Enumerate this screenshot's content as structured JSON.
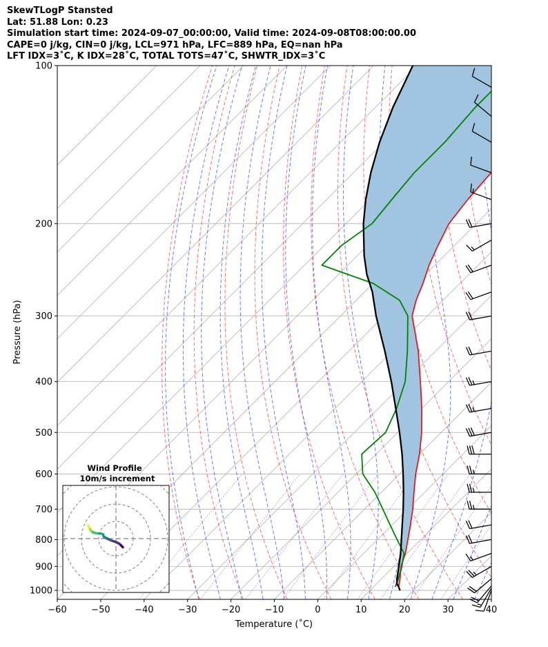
{
  "header": {
    "line1": "SkewTLogP Stansted",
    "line2": "Lat: 51.88   Lon: 0.23",
    "line3": "Simulation start time: 2024-09-07_00:00:00, Valid time: 2024-09-08T08:00:00.00",
    "line4": "CAPE=0 j/kg, CIN=0 j/kg, LCL=971 hPa, LFC=889 hPa, EQ=nan hPa",
    "line5": "LFT IDX=3˚C, K IDX=28˚C, TOTAL TOTS=47˚C, SHWTR_IDX=3˚C"
  },
  "chart_data": {
    "type": "line",
    "xlabel": "Temperature (˚C)",
    "ylabel": "Pressure (hPa)",
    "xlim": [
      -60,
      40
    ],
    "ylim": [
      1040,
      100
    ],
    "yscale": "log",
    "skew_degrees": 45,
    "xticks": [
      -60,
      -50,
      -40,
      -30,
      -20,
      -10,
      0,
      10,
      20,
      30,
      40
    ],
    "xtick_labels": [
      "−60",
      "−50",
      "−40",
      "−30",
      "−20",
      "−10",
      "0",
      "10",
      "20",
      "30",
      "40"
    ],
    "yticks": [
      1000,
      900,
      800,
      700,
      600,
      500,
      400,
      300,
      200,
      100
    ],
    "ytick_labels": [
      "1000",
      "900",
      "800",
      "700",
      "600",
      "500",
      "400",
      "300",
      "200",
      "100"
    ],
    "grid": true,
    "series": [
      {
        "role": "temperature",
        "color": "#e31a1c",
        "p": [
          985,
          950,
          900,
          850,
          800,
          750,
          700,
          650,
          600,
          550,
          500,
          450,
          400,
          350,
          320,
          300,
          280,
          260,
          240,
          220,
          200,
          180,
          160,
          140,
          120,
          100
        ],
        "t": [
          15.8,
          14.2,
          11.6,
          9.6,
          7.0,
          4.2,
          1.1,
          -2.5,
          -6.3,
          -10.0,
          -14.5,
          -20.0,
          -26.5,
          -34.0,
          -39.5,
          -43.5,
          -46.2,
          -48.5,
          -51.3,
          -53.8,
          -56.3,
          -57.5,
          -58.3,
          -58.0,
          -57.5,
          -57.0
        ]
      },
      {
        "role": "dewpoint",
        "color": "#008000",
        "p": [
          985,
          950,
          900,
          850,
          800,
          750,
          700,
          650,
          600,
          550,
          500,
          450,
          400,
          350,
          300,
          280,
          260,
          240,
          220,
          200,
          180,
          160,
          140,
          120,
          100
        ],
        "t": [
          15.0,
          13.8,
          11.8,
          9.3,
          4.5,
          -0.5,
          -5.8,
          -11.5,
          -18.5,
          -23.3,
          -22.8,
          -25.8,
          -30.0,
          -36.5,
          -44.5,
          -50.0,
          -60.0,
          -76.0,
          -76.0,
          -74.0,
          -75.0,
          -76.0,
          -76.0,
          -77.0,
          -77.0
        ]
      },
      {
        "role": "parcel",
        "color": "#000000",
        "p": [
          1000,
          985,
          971,
          950,
          900,
          850,
          800,
          750,
          700,
          650,
          600,
          550,
          500,
          450,
          400,
          350,
          300,
          270,
          250,
          230,
          200,
          180,
          160,
          140,
          120,
          100
        ],
        "t": [
          16.9,
          15.8,
          14.6,
          13.5,
          11.1,
          8.5,
          5.5,
          2.3,
          -1.1,
          -4.9,
          -9.2,
          -14.0,
          -19.6,
          -26.0,
          -33.2,
          -41.7,
          -51.8,
          -58.2,
          -63.5,
          -68.5,
          -76.0,
          -81.0,
          -86.0,
          -91.0,
          -96.0,
          -101.0
        ]
      }
    ],
    "cape_fill_color": "#a1c5e0",
    "wind_barbs": {
      "p": [
        1000,
        990,
        980,
        950,
        900,
        850,
        800,
        750,
        700,
        650,
        600,
        550,
        500,
        450,
        400,
        350,
        300,
        270,
        240,
        215,
        200,
        180,
        160,
        140,
        125,
        110
      ],
      "speed_kt": [
        10,
        15,
        20,
        20,
        25,
        15,
        20,
        20,
        25,
        25,
        25,
        30,
        30,
        25,
        25,
        20,
        20,
        20,
        20,
        15,
        20,
        15,
        10,
        10,
        10,
        10
      ],
      "dir_deg": [
        200,
        210,
        220,
        230,
        240,
        250,
        260,
        260,
        270,
        270,
        270,
        270,
        260,
        260,
        260,
        260,
        260,
        250,
        250,
        240,
        260,
        290,
        290,
        300,
        310,
        300
      ]
    },
    "hodograph": {
      "title": "Wind Profile",
      "subtitle": "10m/s increment",
      "rings_ms": [
        10,
        20,
        30,
        40
      ],
      "u": [
        4,
        2,
        0,
        -3,
        -5,
        -6,
        -7,
        -7.5,
        -9,
        -11,
        -13,
        -14.5,
        -15,
        -15.5,
        -16
      ],
      "v": [
        -5,
        -3,
        -2,
        -1,
        0,
        0.5,
        1,
        2.5,
        3,
        3,
        3.5,
        4.5,
        5.5,
        6.5,
        7.5
      ]
    }
  }
}
